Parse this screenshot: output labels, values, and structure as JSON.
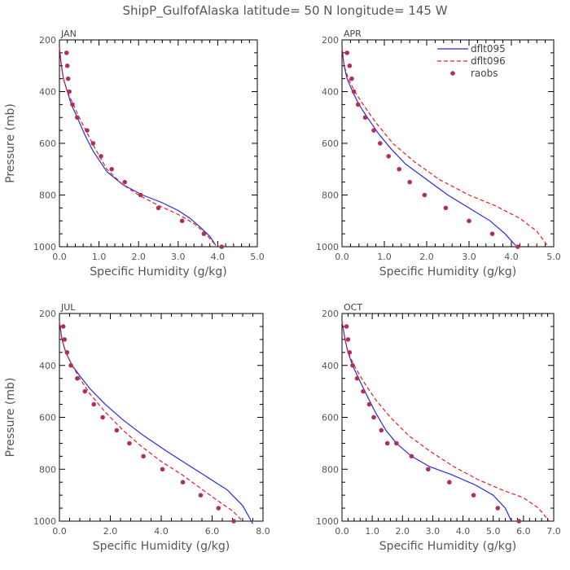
{
  "title": "ShipP_GulfofAlaska  latitude= 50 N longitude= 145 W",
  "colors": {
    "dflt095": "#2a2ae0",
    "dflt096": "#e02020",
    "raobs": "#b0305a",
    "axis": "#000000",
    "text": "#555555"
  },
  "legend": {
    "placement": "top-right of APR panel",
    "entries": [
      {
        "key": "dflt095",
        "label": "dflt095",
        "style": "solid"
      },
      {
        "key": "dflt096",
        "label": "dflt096",
        "style": "dashed"
      },
      {
        "key": "raobs",
        "label": "raobs",
        "style": "dot"
      }
    ]
  },
  "chart_data": [
    {
      "type": "line",
      "panel": "JAN",
      "xlabel": "Specific Humidity (g/kg)",
      "ylabel": "Pressure (mb)",
      "xlim": [
        0,
        5
      ],
      "xticks": [
        0,
        1,
        2,
        3,
        4,
        5
      ],
      "xticklabels": [
        "0.0",
        "1.0",
        "2.0",
        "3.0",
        "4.0",
        "5.0"
      ],
      "ylim": [
        200,
        1000
      ],
      "yticks": [
        200,
        400,
        600,
        800,
        1000
      ],
      "yticklabels": [
        "200",
        "400",
        "600",
        "800",
        "1000"
      ],
      "series": [
        {
          "name": "dflt095",
          "style": "solid",
          "x": [
            0.0,
            0.05,
            0.1,
            0.2,
            0.3,
            0.45,
            0.65,
            0.85,
            1.2,
            1.6,
            2.1,
            2.6,
            3.0,
            3.3,
            3.6,
            3.8,
            3.95
          ],
          "y": [
            230,
            300,
            350,
            400,
            450,
            500,
            570,
            630,
            710,
            760,
            800,
            830,
            860,
            890,
            930,
            960,
            995
          ]
        },
        {
          "name": "dflt096",
          "style": "dashed",
          "x": [
            0.0,
            0.05,
            0.1,
            0.2,
            0.35,
            0.5,
            0.7,
            0.9,
            1.2,
            1.6,
            2.0,
            2.5,
            3.0,
            3.4,
            3.7,
            3.95
          ],
          "y": [
            230,
            300,
            350,
            400,
            450,
            500,
            560,
            620,
            700,
            760,
            800,
            840,
            875,
            910,
            950,
            995
          ]
        },
        {
          "name": "raobs",
          "style": "dot",
          "x": [
            0.18,
            0.2,
            0.22,
            0.25,
            0.33,
            0.45,
            0.7,
            0.85,
            1.05,
            1.32,
            1.65,
            2.05,
            2.5,
            3.1,
            3.65,
            4.1
          ],
          "y": [
            250,
            300,
            350,
            400,
            450,
            500,
            550,
            600,
            650,
            700,
            750,
            800,
            850,
            900,
            950,
            1000
          ]
        }
      ]
    },
    {
      "type": "line",
      "panel": "APR",
      "xlabel": "Specific Humidity (g/kg)",
      "ylabel": "",
      "xlim": [
        0,
        5
      ],
      "xticks": [
        0,
        1,
        2,
        3,
        4,
        5
      ],
      "xticklabels": [
        "0.0",
        "1.0",
        "2.0",
        "3.0",
        "4.0",
        "5.0"
      ],
      "ylim": [
        200,
        1000
      ],
      "yticks": [
        200,
        400,
        600,
        800,
        1000
      ],
      "yticklabels": [
        "200",
        "400",
        "600",
        "800",
        "1000"
      ],
      "series": [
        {
          "name": "dflt095",
          "style": "solid",
          "x": [
            0.0,
            0.05,
            0.12,
            0.25,
            0.4,
            0.6,
            0.85,
            1.15,
            1.5,
            2.0,
            2.5,
            3.0,
            3.5,
            3.85,
            4.1
          ],
          "y": [
            230,
            300,
            350,
            400,
            450,
            500,
            560,
            620,
            680,
            740,
            800,
            850,
            900,
            950,
            995
          ]
        },
        {
          "name": "dflt096",
          "style": "dashed",
          "x": [
            0.0,
            0.05,
            0.15,
            0.3,
            0.5,
            0.8,
            1.2,
            1.7,
            2.3,
            3.0,
            3.6,
            4.2,
            4.6,
            4.85
          ],
          "y": [
            230,
            300,
            350,
            400,
            450,
            520,
            600,
            670,
            740,
            800,
            840,
            890,
            940,
            995
          ]
        },
        {
          "name": "raobs",
          "style": "dot",
          "x": [
            0.12,
            0.18,
            0.23,
            0.28,
            0.38,
            0.55,
            0.75,
            0.9,
            1.1,
            1.35,
            1.6,
            1.95,
            2.45,
            3.0,
            3.55,
            4.15
          ],
          "y": [
            250,
            300,
            350,
            400,
            450,
            500,
            550,
            600,
            650,
            700,
            750,
            800,
            850,
            900,
            950,
            1000
          ]
        }
      ]
    },
    {
      "type": "line",
      "panel": "JUL",
      "xlabel": "Specific Humidity (g/kg)",
      "ylabel": "Pressure (mb)",
      "xlim": [
        0,
        8
      ],
      "xticks": [
        0,
        2,
        4,
        6,
        8
      ],
      "xticklabels": [
        "0.0",
        "2.0",
        "4.0",
        "6.0",
        "8.0"
      ],
      "ylim": [
        200,
        1000
      ],
      "yticks": [
        200,
        400,
        600,
        800,
        1000
      ],
      "yticklabels": [
        "200",
        "400",
        "600",
        "800",
        "1000"
      ],
      "series": [
        {
          "name": "dflt095",
          "style": "solid",
          "x": [
            0.0,
            0.1,
            0.25,
            0.5,
            0.8,
            1.2,
            1.8,
            2.5,
            3.3,
            4.2,
            5.0,
            5.8,
            6.6,
            7.2,
            7.6
          ],
          "y": [
            230,
            300,
            350,
            400,
            440,
            490,
            550,
            610,
            670,
            730,
            780,
            830,
            880,
            940,
            1010
          ]
        },
        {
          "name": "dflt096",
          "style": "dashed",
          "x": [
            0.0,
            0.1,
            0.25,
            0.5,
            0.8,
            1.2,
            1.8,
            2.5,
            3.2,
            4.0,
            4.8,
            5.5,
            6.2,
            6.8,
            7.2
          ],
          "y": [
            230,
            300,
            350,
            400,
            450,
            510,
            580,
            650,
            710,
            770,
            820,
            870,
            920,
            960,
            1000
          ]
        },
        {
          "name": "raobs",
          "style": "dot",
          "x": [
            0.15,
            0.2,
            0.3,
            0.45,
            0.7,
            1.0,
            1.35,
            1.7,
            2.25,
            2.75,
            3.3,
            4.05,
            4.85,
            5.55,
            6.25,
            6.85
          ],
          "y": [
            250,
            300,
            350,
            400,
            450,
            500,
            550,
            600,
            650,
            700,
            750,
            800,
            850,
            900,
            950,
            1000
          ]
        }
      ]
    },
    {
      "type": "line",
      "panel": "OCT",
      "xlabel": "Specific Humidity (g/kg)",
      "ylabel": "",
      "xlim": [
        0,
        7
      ],
      "xticks": [
        0,
        1,
        2,
        3,
        4,
        5,
        6,
        7
      ],
      "xticklabels": [
        "0.0",
        "1.0",
        "2.0",
        "3.0",
        "4.0",
        "5.0",
        "6.0",
        "7.0"
      ],
      "ylim": [
        200,
        1000
      ],
      "yticks": [
        200,
        400,
        600,
        800,
        1000
      ],
      "yticklabels": [
        "200",
        "400",
        "600",
        "800",
        "1000"
      ],
      "series": [
        {
          "name": "dflt095",
          "style": "solid",
          "x": [
            0.0,
            0.1,
            0.2,
            0.35,
            0.55,
            0.8,
            1.1,
            1.45,
            1.8,
            2.3,
            2.9,
            3.6,
            4.4,
            5.0,
            5.4,
            5.6
          ],
          "y": [
            230,
            300,
            350,
            400,
            450,
            510,
            580,
            650,
            700,
            750,
            790,
            820,
            860,
            900,
            950,
            1000
          ]
        },
        {
          "name": "dflt096",
          "style": "dashed",
          "x": [
            0.0,
            0.1,
            0.2,
            0.4,
            0.7,
            1.1,
            1.6,
            2.2,
            2.9,
            3.7,
            4.5,
            5.3,
            6.0,
            6.5,
            6.85
          ],
          "y": [
            230,
            300,
            350,
            400,
            460,
            530,
            600,
            670,
            730,
            790,
            840,
            880,
            910,
            950,
            1000
          ]
        },
        {
          "name": "raobs",
          "style": "dot",
          "x": [
            0.15,
            0.2,
            0.25,
            0.35,
            0.5,
            0.7,
            0.9,
            1.05,
            1.3,
            1.5,
            1.8,
            2.3,
            2.85,
            3.55,
            4.35,
            5.15,
            5.85
          ],
          "y": [
            250,
            300,
            350,
            400,
            450,
            500,
            550,
            600,
            650,
            700,
            700,
            750,
            800,
            850,
            900,
            950,
            1000
          ]
        }
      ]
    }
  ]
}
